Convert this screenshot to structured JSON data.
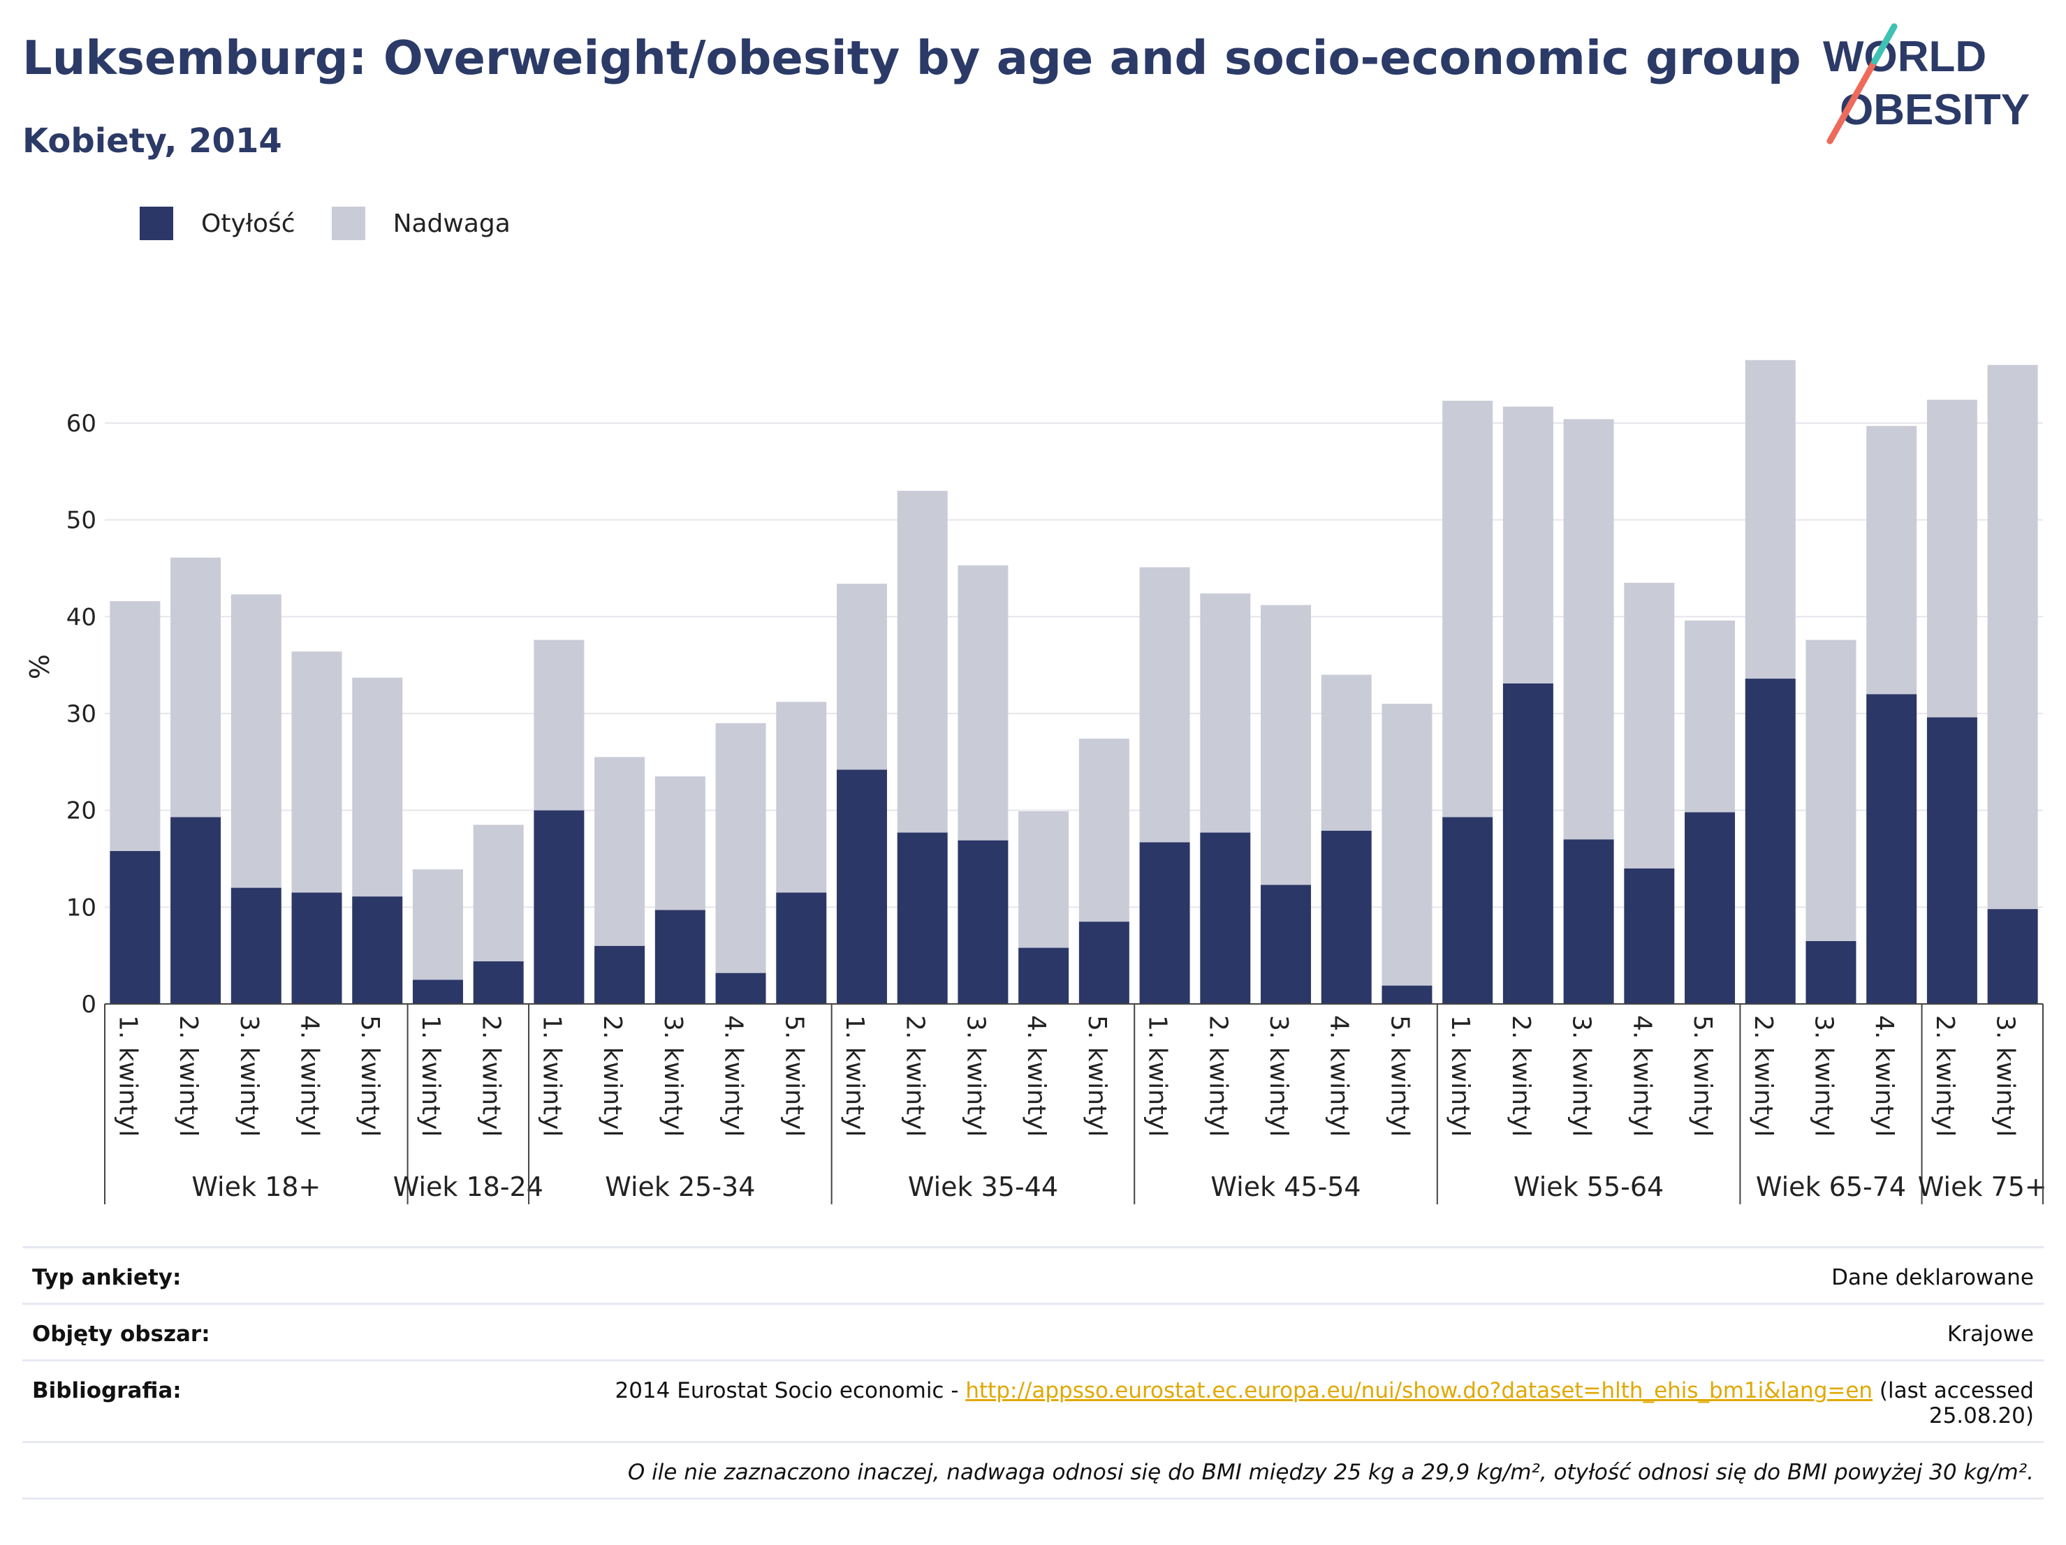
{
  "header": {
    "title": "Luksemburg: Overweight/obesity by age and socio-economic group",
    "subtitle": "Kobiety, 2014"
  },
  "logo": {
    "line1": "WORLD",
    "line2": "OBESITY"
  },
  "colors": {
    "obesity": "#2b3766",
    "overweight": "#c9cbd7",
    "title": "#2b3a67",
    "grid": "#e6e6ec",
    "link": "#e0a800"
  },
  "legend": {
    "obesity_label": "Otyłość",
    "overweight_label": "Nadwaga"
  },
  "chart_data": {
    "type": "bar",
    "stacked": true,
    "ylabel": "%",
    "ylim": [
      0,
      68
    ],
    "yticks": [
      0,
      10,
      20,
      30,
      40,
      50,
      60
    ],
    "grid": true,
    "legend_position": "top-left",
    "groups": [
      {
        "name": "Wiek 18+",
        "categories": [
          "1. kwintyl",
          "2. kwintyl",
          "3. kwintyl",
          "4. kwintyl",
          "5. kwintyl"
        ]
      },
      {
        "name": "Wiek 18-24",
        "categories": [
          "1. kwintyl",
          "2. kwintyl"
        ]
      },
      {
        "name": "Wiek 25-34",
        "categories": [
          "1. kwintyl",
          "2. kwintyl",
          "3. kwintyl",
          "4. kwintyl",
          "5. kwintyl"
        ]
      },
      {
        "name": "Wiek 35-44",
        "categories": [
          "1. kwintyl",
          "2. kwintyl",
          "3. kwintyl",
          "4. kwintyl",
          "5. kwintyl"
        ]
      },
      {
        "name": "Wiek 45-54",
        "categories": [
          "1. kwintyl",
          "2. kwintyl",
          "3. kwintyl",
          "4. kwintyl",
          "5. kwintyl"
        ]
      },
      {
        "name": "Wiek 55-64",
        "categories": [
          "1. kwintyl",
          "2. kwintyl",
          "3. kwintyl",
          "4. kwintyl",
          "5. kwintyl"
        ]
      },
      {
        "name": "Wiek 65-74",
        "categories": [
          "2. kwintyl",
          "3. kwintyl",
          "4. kwintyl"
        ]
      },
      {
        "name": "Wiek 75+",
        "categories": [
          "2. kwintyl",
          "3. kwintyl"
        ]
      }
    ],
    "series": [
      {
        "name": "Otyłość",
        "values": [
          15.8,
          19.3,
          12.0,
          11.5,
          11.1,
          2.5,
          4.4,
          20.0,
          6.0,
          9.7,
          3.2,
          11.5,
          24.2,
          17.7,
          16.9,
          5.8,
          8.5,
          16.7,
          17.7,
          12.3,
          17.9,
          1.9,
          19.3,
          33.1,
          17.0,
          14.0,
          19.8,
          33.6,
          6.5,
          32.0,
          29.6,
          9.8
        ]
      },
      {
        "name": "Nadwaga",
        "values": [
          25.8,
          26.8,
          30.3,
          24.9,
          22.6,
          11.4,
          14.1,
          17.6,
          19.5,
          13.8,
          25.8,
          19.7,
          19.2,
          35.3,
          28.4,
          14.1,
          18.9,
          28.4,
          24.7,
          28.9,
          16.1,
          29.1,
          43.0,
          28.6,
          43.4,
          29.5,
          19.8,
          32.9,
          31.1,
          27.7,
          32.8,
          56.2
        ]
      }
    ]
  },
  "info": {
    "survey_type_label": "Typ ankiety:",
    "survey_type_value": "Dane deklarowane",
    "area_label": "Objęty obszar:",
    "area_value": "Krajowe",
    "bibliography_label": "Bibliografia:",
    "bibliography_prefix": "2014 Eurostat Socio economic - ",
    "bibliography_link": "http://appsso.eurostat.ec.europa.eu/nui/show.do?dataset=hlth_ehis_bm1i&lang=en",
    "bibliography_suffix": " (last accessed",
    "bibliography_date": "25.08.20)",
    "note": "O ile nie zaznaczono inaczej, nadwaga odnosi się do BMI między 25 kg a 29,9 kg/m², otyłość odnosi się do BMI powyżej 30 kg/m²."
  }
}
